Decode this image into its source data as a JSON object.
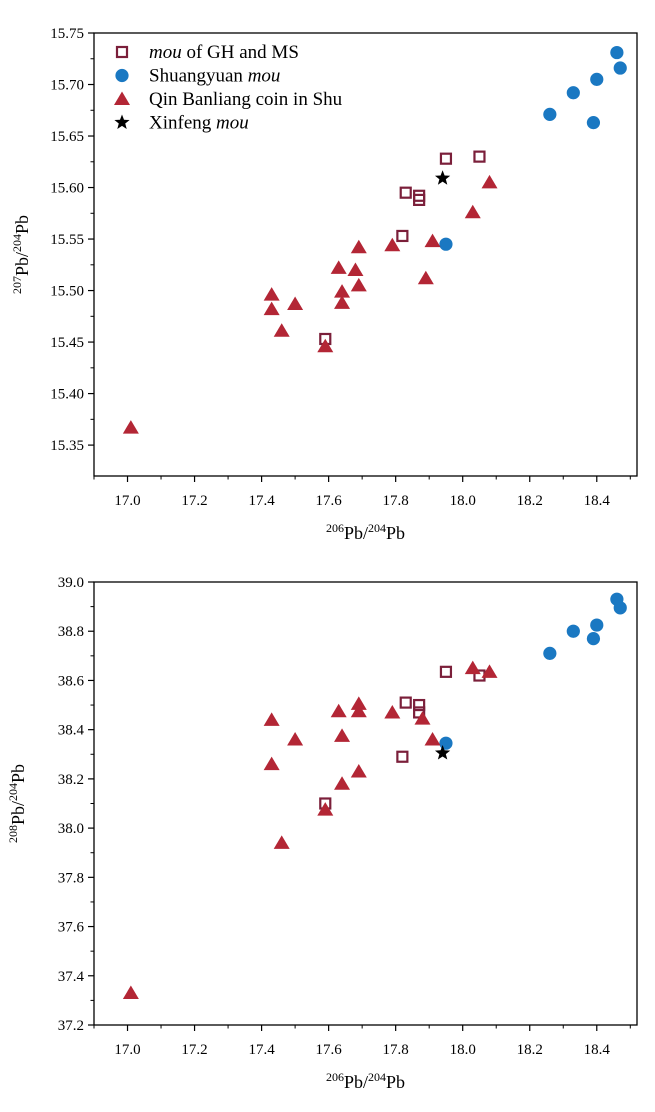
{
  "colors": {
    "mou_gh_ms": "#7b1f3a",
    "shuangyuan": "#1a78c2",
    "qin_banliang": "#b32635",
    "xinfeng": "#000000",
    "axis": "#000000"
  },
  "legend": [
    {
      "key": "mou_gh_ms",
      "marker": "open-square",
      "italic": "mou",
      "rest": " of GH and MS"
    },
    {
      "key": "shuangyuan",
      "marker": "circle",
      "rest": "Shuangyuan ",
      "italic_after": "mou"
    },
    {
      "key": "qin_banliang",
      "marker": "triangle",
      "rest": "Qin Banliang coin in Shu"
    },
    {
      "key": "xinfeng",
      "marker": "star",
      "rest": "Xinfeng ",
      "italic_after": "mou"
    }
  ],
  "chart_data": [
    {
      "type": "scatter",
      "xlabel": {
        "pre1": "206",
        "mid": "Pb/",
        "pre2": "204",
        "post": "Pb"
      },
      "ylabel": {
        "pre1": "207",
        "mid": "Pb/",
        "pre2": "204",
        "post": "Pb"
      },
      "xlim": [
        16.9,
        18.52
      ],
      "ylim": [
        15.32,
        15.75
      ],
      "xticks": [
        "17.0",
        "17.2",
        "17.4",
        "17.6",
        "17.8",
        "18.0",
        "18.2",
        "18.4"
      ],
      "yticks": [
        "15.35",
        "15.40",
        "15.45",
        "15.50",
        "15.55",
        "15.60",
        "15.65",
        "15.70",
        "15.75"
      ],
      "legend_position": "top-left",
      "series": [
        {
          "key": "mou_gh_ms",
          "name": "mou of GH and MS",
          "points": [
            [
              17.59,
              15.453
            ],
            [
              17.82,
              15.553
            ],
            [
              17.83,
              15.595
            ],
            [
              17.87,
              15.588
            ],
            [
              17.87,
              15.592
            ],
            [
              17.95,
              15.628
            ],
            [
              18.05,
              15.63
            ]
          ]
        },
        {
          "key": "shuangyuan",
          "name": "Shuangyuan mou",
          "points": [
            [
              17.95,
              15.545
            ],
            [
              18.26,
              15.671
            ],
            [
              18.33,
              15.692
            ],
            [
              18.39,
              15.663
            ],
            [
              18.4,
              15.705
            ],
            [
              18.46,
              15.731
            ],
            [
              18.47,
              15.716
            ]
          ]
        },
        {
          "key": "qin_banliang",
          "name": "Qin Banliang coin in Shu",
          "points": [
            [
              17.01,
              15.367
            ],
            [
              17.43,
              15.482
            ],
            [
              17.43,
              15.496
            ],
            [
              17.46,
              15.461
            ],
            [
              17.5,
              15.487
            ],
            [
              17.59,
              15.446
            ],
            [
              17.63,
              15.522
            ],
            [
              17.64,
              15.499
            ],
            [
              17.64,
              15.488
            ],
            [
              17.68,
              15.52
            ],
            [
              17.69,
              15.505
            ],
            [
              17.69,
              15.542
            ],
            [
              17.79,
              15.544
            ],
            [
              17.89,
              15.512
            ],
            [
              17.91,
              15.548
            ],
            [
              18.03,
              15.576
            ],
            [
              18.08,
              15.605
            ]
          ]
        },
        {
          "key": "xinfeng",
          "name": "Xinfeng mou",
          "points": [
            [
              17.94,
              15.609
            ]
          ]
        }
      ]
    },
    {
      "type": "scatter",
      "xlabel": {
        "pre1": "206",
        "mid": "Pb/",
        "pre2": "204",
        "post": "Pb"
      },
      "ylabel": {
        "pre1": "208",
        "mid": "Pb/",
        "pre2": "204",
        "post": "Pb"
      },
      "xlim": [
        16.9,
        18.52
      ],
      "ylim": [
        37.2,
        39.0
      ],
      "xticks": [
        "17.0",
        "17.2",
        "17.4",
        "17.6",
        "17.8",
        "18.0",
        "18.2",
        "18.4"
      ],
      "yticks": [
        "37.2",
        "37.4",
        "37.6",
        "37.8",
        "38.0",
        "38.2",
        "38.4",
        "38.6",
        "38.8",
        "39.0"
      ],
      "series": [
        {
          "key": "mou_gh_ms",
          "name": "mou of GH and MS",
          "points": [
            [
              17.59,
              38.1
            ],
            [
              17.82,
              38.29
            ],
            [
              17.83,
              38.51
            ],
            [
              17.87,
              38.47
            ],
            [
              17.87,
              38.5
            ],
            [
              17.95,
              38.635
            ],
            [
              18.05,
              38.62
            ]
          ]
        },
        {
          "key": "shuangyuan",
          "name": "Shuangyuan mou",
          "points": [
            [
              17.95,
              38.345
            ],
            [
              18.26,
              38.71
            ],
            [
              18.33,
              38.8
            ],
            [
              18.39,
              38.77
            ],
            [
              18.4,
              38.825
            ],
            [
              18.46,
              38.93
            ],
            [
              18.47,
              38.895
            ]
          ]
        },
        {
          "key": "qin_banliang",
          "name": "Qin Banliang coin in Shu",
          "points": [
            [
              17.01,
              37.33
            ],
            [
              17.43,
              38.26
            ],
            [
              17.43,
              38.44
            ],
            [
              17.46,
              37.94
            ],
            [
              17.5,
              38.36
            ],
            [
              17.59,
              38.075
            ],
            [
              17.63,
              38.475
            ],
            [
              17.64,
              38.375
            ],
            [
              17.64,
              38.18
            ],
            [
              17.69,
              38.505
            ],
            [
              17.69,
              38.475
            ],
            [
              17.69,
              38.23
            ],
            [
              17.79,
              38.47
            ],
            [
              17.88,
              38.445
            ],
            [
              17.91,
              38.36
            ],
            [
              18.03,
              38.65
            ],
            [
              18.08,
              38.635
            ]
          ]
        },
        {
          "key": "xinfeng",
          "name": "Xinfeng mou",
          "points": [
            [
              17.94,
              38.305
            ]
          ]
        }
      ]
    }
  ]
}
